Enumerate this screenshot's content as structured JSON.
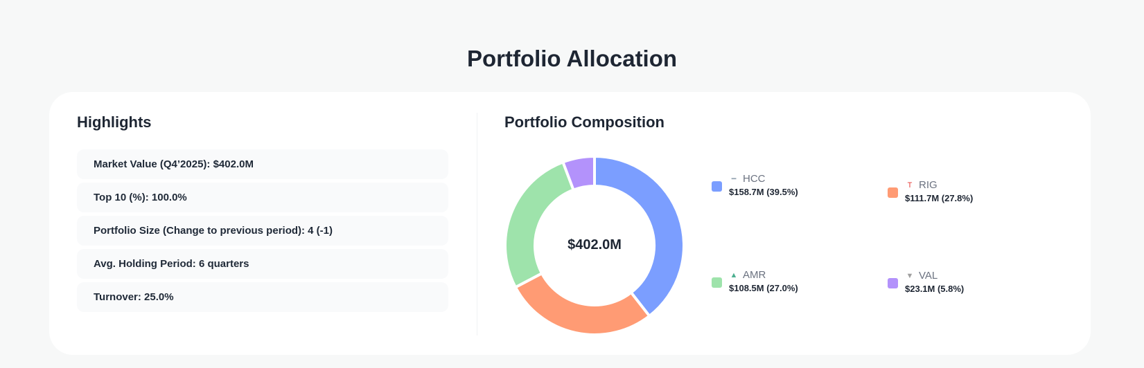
{
  "page_title": "Portfolio Allocation",
  "highlights": {
    "title": "Highlights",
    "items": [
      "Market Value (Q4’2025): $402.0M",
      "Top 10 (%): 100.0%",
      "Portfolio Size (Change to previous period): 4 (-1)",
      "Avg. Holding Period: 6 quarters",
      "Turnover: 25.0%"
    ]
  },
  "composition": {
    "title": "Portfolio Composition"
  },
  "chart_data": {
    "type": "pie",
    "center_label": "$402.0M",
    "categories": [
      "HCC",
      "RIG",
      "AMR",
      "VAL"
    ],
    "values": [
      158.7,
      111.7,
      108.5,
      23.1
    ],
    "value_labels": [
      "$158.7M (39.5%)",
      "$111.7M (27.8%)",
      "$108.5M (27.0%)",
      "$23.1M (5.8%)"
    ],
    "percents": [
      39.5,
      27.8,
      27.0,
      5.8
    ],
    "colors": [
      "#7b9eff",
      "#ff9b74",
      "#9ee3ab",
      "#b392fb"
    ],
    "icons": [
      "hcc-logo-icon",
      "rig-logo-icon",
      "amr-logo-icon",
      "val-logo-icon"
    ],
    "legend_placement": "right"
  }
}
